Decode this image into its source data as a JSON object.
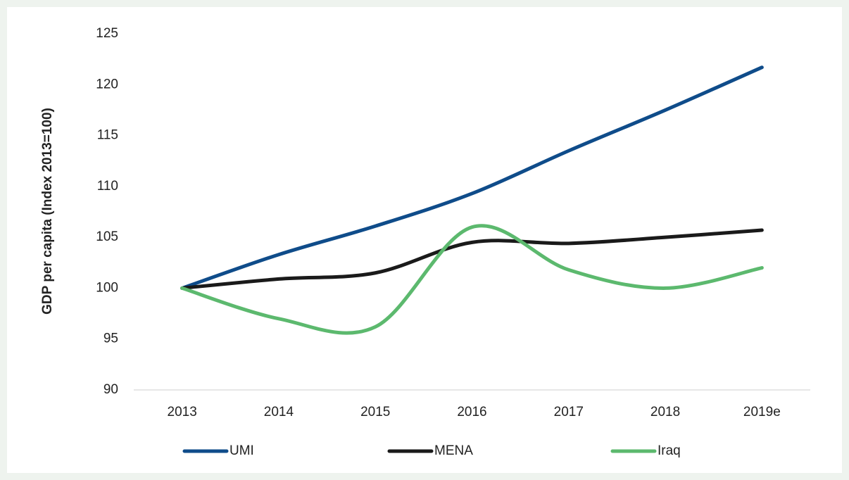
{
  "chart_data": {
    "type": "line",
    "y_label": "GDP per capita (Index 2013=100)",
    "categories": [
      "2013",
      "2014",
      "2015",
      "2016",
      "2017",
      "2018",
      "2019e"
    ],
    "series": [
      {
        "name": "UMI",
        "color": "#0f4c8a",
        "values": [
          100,
          103.3,
          106.1,
          109.3,
          113.5,
          117.5,
          121.7
        ]
      },
      {
        "name": "MENA",
        "color": "#1a1a1a",
        "values": [
          100,
          100.9,
          101.5,
          104.5,
          104.4,
          105,
          105.7
        ]
      },
      {
        "name": "Iraq",
        "color": "#5cb96e",
        "values": [
          100,
          97,
          96.2,
          106,
          101.8,
          100,
          102
        ]
      }
    ],
    "ylim": [
      90,
      125
    ],
    "yticks": [
      90,
      95,
      100,
      105,
      110,
      115,
      120,
      125
    ],
    "grid": false,
    "legend": "bottom",
    "smooth": true
  }
}
